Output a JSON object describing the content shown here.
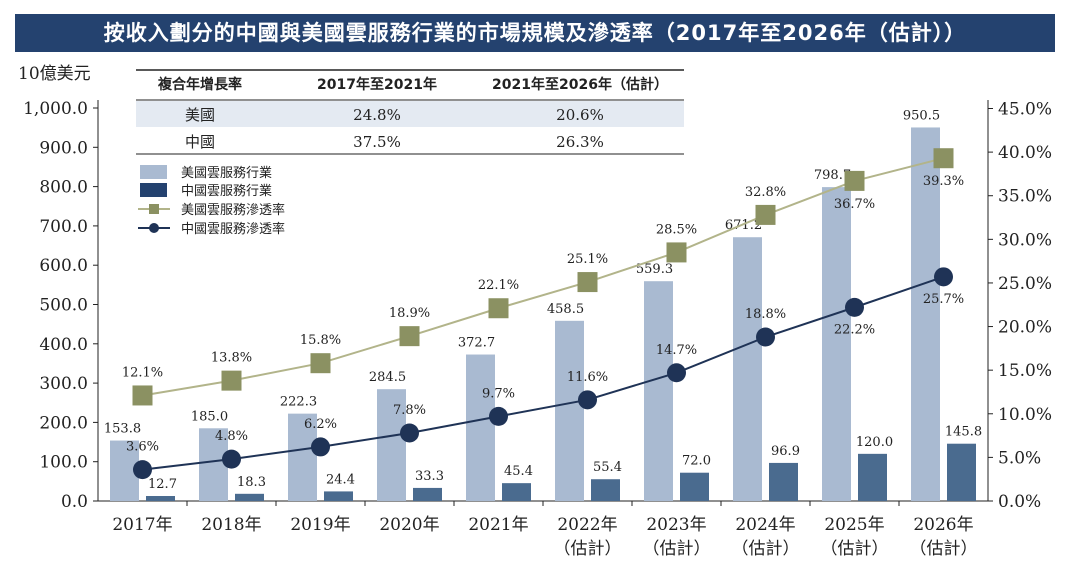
{
  "title": "按收入劃分的中國與美國雲服務行業的市場規模及滲透率（2017年至2026年（估計））",
  "chart_data": {
    "type": "bar+line",
    "left_axis_unit": "10億美元",
    "categories": [
      [
        "2017年"
      ],
      [
        "2018年"
      ],
      [
        "2019年"
      ],
      [
        "2020年"
      ],
      [
        "2021年"
      ],
      [
        "2022年",
        "（估計）"
      ],
      [
        "2023年",
        "（估計）"
      ],
      [
        "2024年",
        "（估計）"
      ],
      [
        "2025年",
        "（估計）"
      ],
      [
        "2026年",
        "（估計）"
      ]
    ],
    "bar_series": [
      {
        "name": "美國雲服務行業",
        "values": [
          153.8,
          185.0,
          222.3,
          284.5,
          372.7,
          458.5,
          559.3,
          671.2,
          798.7,
          950.5
        ],
        "labels": [
          "153.8",
          "185.0",
          "222.3",
          "284.5",
          "372.7",
          "458.5",
          "559.3",
          "671.2",
          "798.7",
          "950.5"
        ],
        "color": "#a9bad1"
      },
      {
        "name": "中國雲服務行業",
        "values": [
          12.7,
          18.3,
          24.4,
          33.3,
          45.4,
          55.4,
          72.0,
          96.9,
          120.0,
          145.8
        ],
        "labels": [
          "12.7",
          "18.3",
          "24.4",
          "33.3",
          "45.4",
          "55.4",
          "72.0",
          "96.9",
          "120.0",
          "145.8"
        ],
        "color": "#4a6b8f"
      }
    ],
    "line_series": [
      {
        "name": "美國雲服務滲透率",
        "values": [
          12.1,
          13.8,
          15.8,
          18.9,
          22.1,
          25.1,
          28.5,
          32.8,
          36.7,
          39.3
        ],
        "labels": [
          "12.1%",
          "13.8%",
          "15.8%",
          "18.9%",
          "22.1%",
          "25.1%",
          "28.5%",
          "32.8%",
          "36.7%",
          "39.3%"
        ],
        "color": "#8b9162",
        "line_color": "#b2b48a",
        "marker": "square"
      },
      {
        "name": "中國雲服務滲透率",
        "values": [
          3.6,
          4.8,
          6.2,
          7.8,
          9.7,
          11.6,
          14.7,
          18.8,
          22.2,
          25.7
        ],
        "labels": [
          "3.6%",
          "4.8%",
          "6.2%",
          "7.8%",
          "9.7%",
          "11.6%",
          "14.7%",
          "18.8%",
          "22.2%",
          "25.7%"
        ],
        "color": "#1f3356",
        "marker": "circle"
      }
    ],
    "left_axis": {
      "min": 0,
      "max": 1000,
      "ticks": [
        "0.0",
        "100.0",
        "200.0",
        "300.0",
        "400.0",
        "500.0",
        "600.0",
        "700.0",
        "800.0",
        "900.0",
        "1,000.0"
      ]
    },
    "right_axis": {
      "min": 0,
      "max": 45,
      "ticks": [
        "0.0%",
        "5.0%",
        "10.0%",
        "15.0%",
        "20.0%",
        "25.0%",
        "30.0%",
        "35.0%",
        "40.0%",
        "45.0%"
      ]
    },
    "legend": [
      {
        "label": "美國雲服務行業",
        "kind": "bar-light"
      },
      {
        "label": "中國雲服務行業",
        "kind": "bar-dark"
      },
      {
        "label": "美國雲服務滲透率",
        "kind": "line-square"
      },
      {
        "label": "中國雲服務滲透率",
        "kind": "line-circle"
      }
    ],
    "cagr_table": {
      "headers": [
        "複合年增長率",
        "2017年至2021年",
        "2021年至2026年（估計）"
      ],
      "rows": [
        [
          "美國",
          "24.8%",
          "20.6%"
        ],
        [
          "中國",
          "37.5%",
          "26.3%"
        ]
      ]
    }
  }
}
